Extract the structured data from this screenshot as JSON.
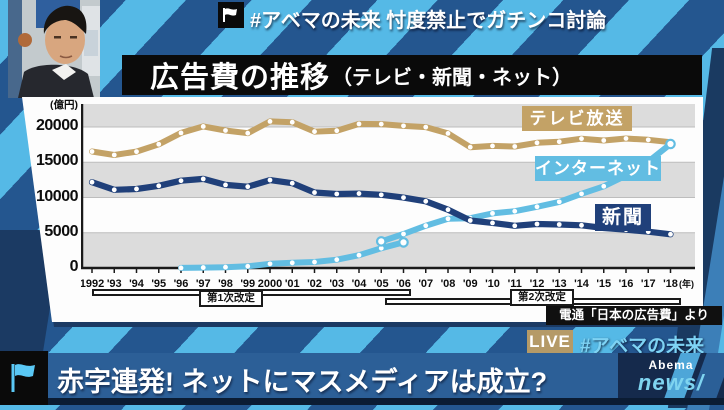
{
  "colors": {
    "stripe_light": "#55b9e6",
    "stripe_dark": "#24568f",
    "deep_navy": "#1b3a63",
    "band_gray": "#dcdcdc",
    "tv_line": "#c3a266",
    "newspaper_line": "#20407a",
    "internet_line": "#62bde2",
    "live_badge_bg": "#b59a67",
    "hashtag_blue": "#7ed3f4",
    "banner_blue": "#2c5f97"
  },
  "top_bar": {
    "hashtag_title": "#アベマの未来 忖度禁止でガチンコ討論"
  },
  "video": {
    "studio_sign_fragment": "ne"
  },
  "chart_panel": {
    "title_main": "広告費の推移",
    "title_sub": "（テレビ・新聞・ネット）",
    "y_unit": "(億円)",
    "x_unit": "(年)",
    "source": "電通「日本の広告費」より",
    "legend_tv": "テレビ放送",
    "legend_internet": "インターネット",
    "legend_newspaper": "新聞",
    "annotation_first": "第1次改定",
    "annotation_second": "第2次改定"
  },
  "live": {
    "badge": "LIVE",
    "hashtag": "#アベマの未来"
  },
  "bottom_banner": {
    "headline": "赤字連発! ネットにマスメディアは成立?",
    "logo_top": "Abema",
    "logo_bottom": "news/"
  },
  "chart_data": {
    "type": "line",
    "title": "広告費の推移（テレビ・新聞・ネット）",
    "ylabel": "(億円)",
    "xlabel_unit": "(年)",
    "ylim": [
      0,
      23260
    ],
    "yticks": [
      0,
      5000,
      10000,
      15000,
      20000
    ],
    "grid_bands_gray": [
      [
        0,
        5000
      ],
      [
        10000,
        15000
      ],
      [
        20000,
        23260
      ]
    ],
    "x_start_year": 1992,
    "x_tick_labels": [
      "1992",
      "'93",
      "'94",
      "'95",
      "'96",
      "'97",
      "'98",
      "'99",
      "2000",
      "'01",
      "'02",
      "'03",
      "'04",
      "'05",
      "'06",
      "'07",
      "'08",
      "'09",
      "'10",
      "'11",
      "'12",
      "'13",
      "'14",
      "'15",
      "'16",
      "'17",
      "'18"
    ],
    "legend_position": "inside-right",
    "series": [
      {
        "name": "テレビ放送",
        "color": "#c3a266",
        "width": 6,
        "start_year": 1992,
        "big_markers": [],
        "values": [
          16526,
          16033,
          16507,
          17553,
          19162,
          20079,
          19505,
          19121,
          20793,
          20681,
          19351,
          19480,
          20436,
          20411,
          20161,
          19981,
          19092,
          17139,
          17321,
          17237,
          17757,
          17913,
          18347,
          18088,
          18374,
          18178,
          17848
        ]
      },
      {
        "name": "インターネット(旧定義)",
        "color": "#62bde2",
        "width": 6,
        "start_year": 1996,
        "big_markers": [
          10
        ],
        "values": [
          16,
          60,
          114,
          241,
          590,
          735,
          845,
          1183,
          1814,
          2808,
          3630
        ]
      },
      {
        "name": "インターネット",
        "color": "#62bde2",
        "width": 6,
        "start_year": 2005,
        "big_markers": [
          0,
          13
        ],
        "values": [
          3777,
          4826,
          6003,
          6983,
          7069,
          7747,
          8062,
          8680,
          9381,
          10519,
          11594,
          13100,
          15094,
          17589
        ]
      },
      {
        "name": "新聞",
        "color": "#20407a",
        "width": 6.2,
        "start_year": 1992,
        "big_markers": [],
        "values": [
          12172,
          11087,
          11211,
          11657,
          12379,
          12636,
          11787,
          11535,
          12474,
          12027,
          10707,
          10500,
          10559,
          10377,
          9986,
          9462,
          8276,
          6739,
          6396,
          5990,
          6242,
          6170,
          6057,
          5679,
          5431,
          5147,
          4784
        ]
      }
    ],
    "annotations": [
      {
        "label": "第1次改定",
        "span_years": [
          1992,
          2006
        ]
      },
      {
        "label": "第2次改定",
        "span_years": [
          2005,
          2018
        ]
      }
    ],
    "source": "電通「日本の広告費」より"
  }
}
